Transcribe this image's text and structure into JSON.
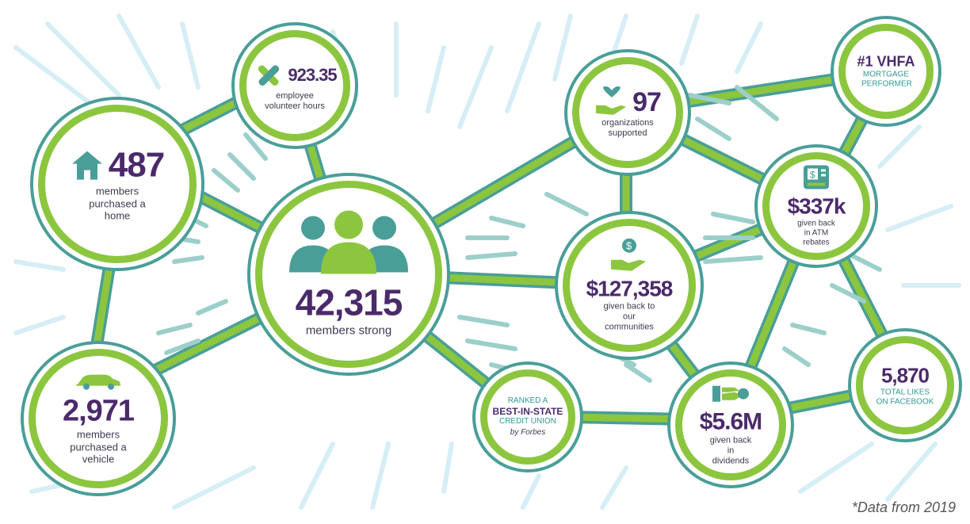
{
  "stats": {
    "members": {
      "value": "42,315",
      "label": "members strong"
    },
    "volunteer": {
      "value": "923.35",
      "label": "employee volunteer hours"
    },
    "homes": {
      "value": "487",
      "label": "members purchased a home"
    },
    "vehicles": {
      "value": "2,971",
      "label": "members purchased a vehicle"
    },
    "organizations": {
      "value": "97",
      "label": "organizations supported"
    },
    "vhfa": {
      "value": "#1 VHFA",
      "label": "MORTGAGE PERFORMER"
    },
    "atm": {
      "value": "$337k",
      "label": "given back in ATM rebates"
    },
    "communities": {
      "value": "$127,358",
      "label": "given back to our communities"
    },
    "best_in_state": {
      "line1": "RANKED A",
      "line2": "BEST-IN-STATE",
      "line3": "CREDIT UNION",
      "line4": "by Forbes"
    },
    "dividends": {
      "value": "$5.6M",
      "label": "given back in dividends"
    },
    "facebook": {
      "value": "5,870",
      "label": "TOTAL LIKES ON FACEBOOK"
    }
  },
  "footnote": "*Data from 2019",
  "colors": {
    "green": "#8cc63f",
    "teal": "#4a9e98",
    "purple": "#4b2a6b",
    "rays": "#d6eef6"
  },
  "icons": [
    "people-icon",
    "helping-hands-icon",
    "house-icon",
    "car-icon",
    "heart-hand-icon",
    "atm-icon",
    "dollar-hand-icon",
    "money-hand-icon"
  ]
}
